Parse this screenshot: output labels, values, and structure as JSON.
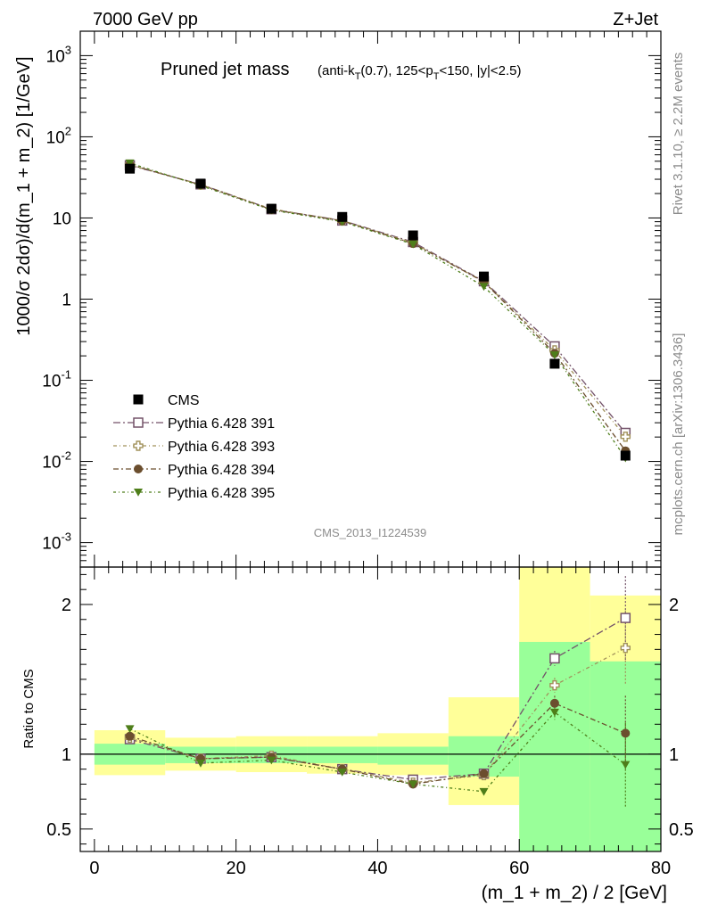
{
  "header": {
    "energy_label": "7000 GeV pp",
    "process_label": "Z+Jet"
  },
  "side_text": {
    "rivet": "Rivet 3.1.10, ≥ 2.2M events",
    "mcplots": "mcplots.cern.ch [arXiv:1306.3436]"
  },
  "chart_data": [
    {
      "type": "scatter",
      "panel": "main",
      "title": "Pruned jet mass",
      "title_cut": "(anti-k_T(0.7), 125<p_T<150, |y|<2.5)",
      "analysis_label": "CMS_2013_I1224539",
      "ylabel": "1000/σ 2dσ)/d(m_1 + m_2) [1/GeV]",
      "xlabel": "",
      "yscale": "log",
      "ylim": [
        0.0005,
        2000
      ],
      "xlim": [
        -2,
        80
      ],
      "ytick_labels": [
        "10^-3",
        "10^-2",
        "10^-1",
        "1",
        "10",
        "10^2",
        "10^3"
      ],
      "legend_position": "lower-left",
      "x": [
        5,
        15,
        25,
        35,
        45,
        55,
        65,
        75
      ],
      "series": [
        {
          "name": "CMS",
          "marker": "filled-square",
          "color": "#000000",
          "values": [
            40.5,
            26.5,
            13.0,
            10.3,
            6.1,
            1.9,
            0.16,
            0.0118
          ]
        },
        {
          "name": "Pythia 6.428 391",
          "marker": "open-square",
          "color": "#735269",
          "values": [
            44.5,
            25.9,
            12.8,
            9.3,
            5.05,
            1.66,
            0.262,
            0.0225
          ]
        },
        {
          "name": "Pythia 6.428 393",
          "marker": "open-cross",
          "color": "#A1915A",
          "values": [
            45.0,
            25.8,
            12.9,
            9.3,
            4.95,
            1.63,
            0.234,
            0.0202
          ]
        },
        {
          "name": "Pythia 6.428 394",
          "marker": "filled-circle",
          "color": "#6B4E2E",
          "values": [
            45.5,
            25.6,
            12.7,
            9.2,
            4.85,
            1.64,
            0.215,
            0.0135
          ]
        },
        {
          "name": "Pythia 6.428 395",
          "marker": "filled-triangle-down",
          "color": "#4E7E1A",
          "values": [
            47.5,
            25.0,
            12.5,
            9.0,
            4.75,
            1.43,
            0.205,
            0.011
          ]
        }
      ]
    },
    {
      "type": "scatter",
      "panel": "ratio",
      "ylabel": "Ratio to CMS",
      "xlabel": "(m_1 + m_2) / 2 [GeV]",
      "ylim": [
        0.35,
        2.25
      ],
      "xlim": [
        -2,
        80
      ],
      "x_ticks": [
        0,
        20,
        40,
        60,
        80
      ],
      "y_ticks": [
        0.5,
        1,
        2
      ],
      "reference_line": 1,
      "x": [
        5,
        15,
        25,
        35,
        45,
        55,
        65,
        75
      ],
      "bins": [
        [
          0,
          10
        ],
        [
          10,
          20
        ],
        [
          20,
          30
        ],
        [
          30,
          40
        ],
        [
          40,
          50
        ],
        [
          50,
          60
        ],
        [
          60,
          70
        ],
        [
          70,
          80
        ]
      ],
      "bands": {
        "stat_color": "#99FF99",
        "total_color": "#FFFF99",
        "stat": [
          [
            0.93,
            1.07
          ],
          [
            0.94,
            1.05
          ],
          [
            0.94,
            1.05
          ],
          [
            0.94,
            1.05
          ],
          [
            0.93,
            1.05
          ],
          [
            0.85,
            1.12
          ],
          [
            0.35,
            1.75
          ],
          [
            0.35,
            1.62
          ]
        ],
        "total": [
          [
            0.86,
            1.16
          ],
          [
            0.89,
            1.11
          ],
          [
            0.88,
            1.12
          ],
          [
            0.87,
            1.12
          ],
          [
            0.86,
            1.14
          ],
          [
            0.66,
            1.38
          ],
          [
            0.35,
            2.25
          ],
          [
            0.43,
            2.06
          ]
        ]
      },
      "series": [
        {
          "name": "Pythia 6.428 391",
          "color": "#735269",
          "values": [
            1.1,
            0.97,
            0.98,
            0.9,
            0.83,
            0.87,
            1.64,
            1.91
          ],
          "errors": [
            0,
            0,
            0,
            0,
            0,
            0,
            0.05,
            0.28
          ]
        },
        {
          "name": "Pythia 6.428 393",
          "color": "#A1915A",
          "values": [
            1.11,
            0.97,
            0.99,
            0.9,
            0.81,
            0.86,
            1.46,
            1.71
          ],
          "errors": [
            0,
            0,
            0,
            0,
            0,
            0,
            0.05,
            0.25
          ]
        },
        {
          "name": "Pythia 6.428 394",
          "color": "#6B4E2E",
          "values": [
            1.12,
            0.97,
            0.98,
            0.9,
            0.8,
            0.87,
            1.34,
            1.14
          ],
          "errors": [
            0,
            0,
            0,
            0,
            0,
            0,
            0.05,
            0.25
          ]
        },
        {
          "name": "Pythia 6.428 395",
          "color": "#4E7E1A",
          "values": [
            1.17,
            0.94,
            0.96,
            0.88,
            0.8,
            0.75,
            1.28,
            0.93
          ],
          "errors": [
            0,
            0,
            0,
            0,
            0,
            0,
            0.05,
            0.28
          ]
        }
      ]
    }
  ]
}
